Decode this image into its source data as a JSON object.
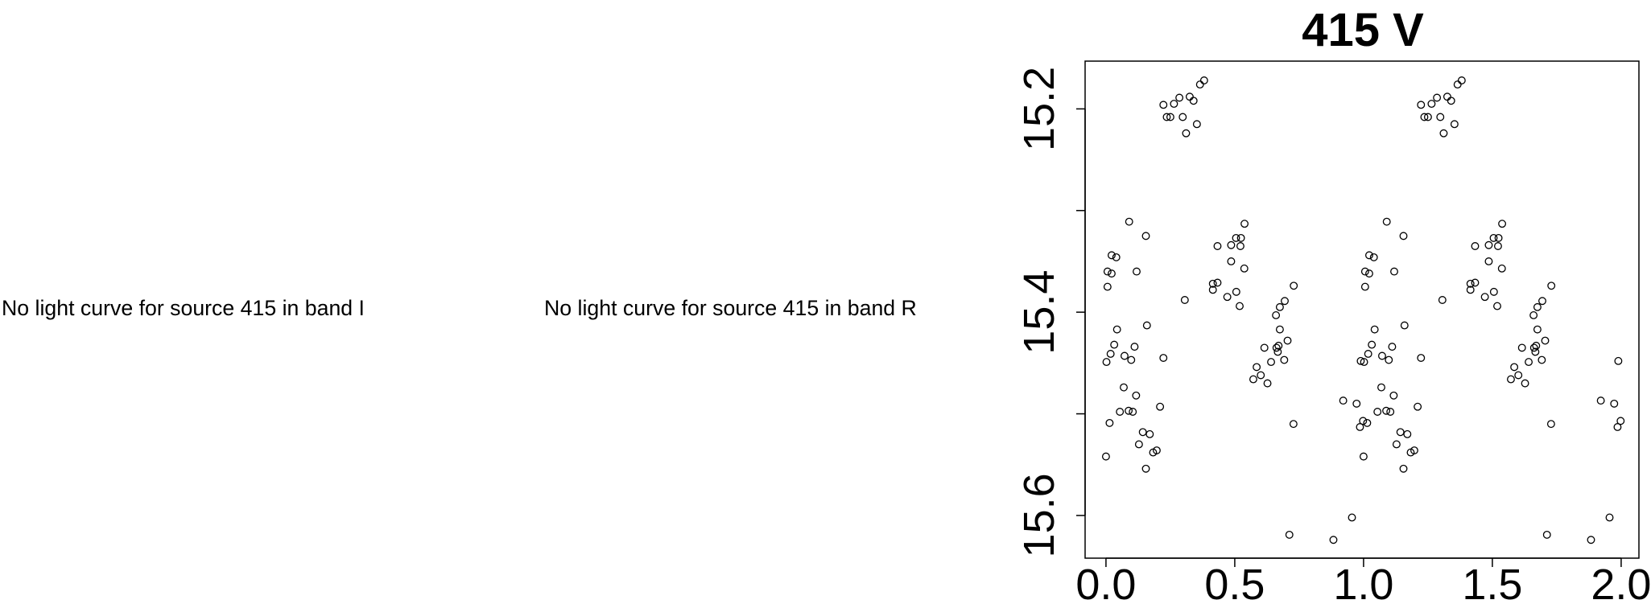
{
  "panels": {
    "band_i_message": "No light curve for source 415 in band I",
    "band_r_message": "No light curve for source 415 in band R"
  },
  "chart_data": {
    "type": "scatter",
    "title": "415 V",
    "xlabel": "",
    "ylabel": "",
    "xlim": [
      -0.081,
      2.069
    ],
    "ylim": [
      15.642,
      15.153
    ],
    "y_reversed": true,
    "grid": false,
    "marker": "open-circle",
    "x_ticks": [
      0.0,
      0.5,
      1.0,
      1.5,
      2.0
    ],
    "x_tick_labels": [
      "0.0",
      "0.5",
      "1.0",
      "1.5",
      "2.0"
    ],
    "y_ticks": [
      15.2,
      15.3,
      15.4,
      15.5,
      15.6
    ],
    "y_tick_labels": [
      "15.2",
      "",
      "15.4",
      "",
      "15.6"
    ],
    "points": [
      [
        0.223,
        15.196
      ],
      [
        0.236,
        15.208
      ],
      [
        0.25,
        15.208
      ],
      [
        0.264,
        15.195
      ],
      [
        0.285,
        15.189
      ],
      [
        0.298,
        15.208
      ],
      [
        0.311,
        15.224
      ],
      [
        0.325,
        15.188
      ],
      [
        0.34,
        15.192
      ],
      [
        0.353,
        15.215
      ],
      [
        0.365,
        15.176
      ],
      [
        0.381,
        15.172
      ],
      [
        0.09,
        15.311
      ],
      [
        0.155,
        15.325
      ],
      [
        0.022,
        15.344
      ],
      [
        0.04,
        15.346
      ],
      [
        0.006,
        15.36
      ],
      [
        0.022,
        15.362
      ],
      [
        0.119,
        15.36
      ],
      [
        0.006,
        15.375
      ],
      [
        0.433,
        15.335
      ],
      [
        0.486,
        15.334
      ],
      [
        0.505,
        15.327
      ],
      [
        0.524,
        15.327
      ],
      [
        0.522,
        15.335
      ],
      [
        0.538,
        15.313
      ],
      [
        0.486,
        15.35
      ],
      [
        0.537,
        15.357
      ],
      [
        0.415,
        15.372
      ],
      [
        0.433,
        15.371
      ],
      [
        0.415,
        15.378
      ],
      [
        0.506,
        15.38
      ],
      [
        0.471,
        15.385
      ],
      [
        0.519,
        15.394
      ],
      [
        0.306,
        15.388
      ],
      [
        0.043,
        15.417
      ],
      [
        0.159,
        15.413
      ],
      [
        0.032,
        15.432
      ],
      [
        0.018,
        15.441
      ],
      [
        0.002,
        15.449
      ],
      [
        0.072,
        15.443
      ],
      [
        0.098,
        15.447
      ],
      [
        0.111,
        15.434
      ],
      [
        0.223,
        15.445
      ],
      [
        0.069,
        15.474
      ],
      [
        0.117,
        15.482
      ],
      [
        0.054,
        15.498
      ],
      [
        0.088,
        15.497
      ],
      [
        0.104,
        15.498
      ],
      [
        0.21,
        15.493
      ],
      [
        0.014,
        15.509
      ],
      [
        0.143,
        15.518
      ],
      [
        0.17,
        15.52
      ],
      [
        0.128,
        15.53
      ],
      [
        0.183,
        15.538
      ],
      [
        0.197,
        15.536
      ],
      [
        0.155,
        15.554
      ],
      [
        0.0,
        15.542
      ],
      [
        0.66,
        15.403
      ],
      [
        0.675,
        15.395
      ],
      [
        0.694,
        15.389
      ],
      [
        0.729,
        15.374
      ],
      [
        0.675,
        15.417
      ],
      [
        0.705,
        15.428
      ],
      [
        0.662,
        15.435
      ],
      [
        0.67,
        15.433
      ],
      [
        0.667,
        15.439
      ],
      [
        0.615,
        15.435
      ],
      [
        0.641,
        15.449
      ],
      [
        0.692,
        15.447
      ],
      [
        0.585,
        15.454
      ],
      [
        0.572,
        15.466
      ],
      [
        0.601,
        15.462
      ],
      [
        0.627,
        15.47
      ],
      [
        0.728,
        15.51
      ],
      [
        0.712,
        15.619
      ],
      [
        0.883,
        15.624
      ],
      [
        0.955,
        15.602
      ],
      [
        0.921,
        15.487
      ],
      [
        0.973,
        15.49
      ],
      [
        0.986,
        15.513
      ],
      [
        0.998,
        15.507
      ],
      [
        0.989,
        15.448
      ],
      [
        1.223,
        15.196
      ],
      [
        1.236,
        15.208
      ],
      [
        1.25,
        15.208
      ],
      [
        1.264,
        15.195
      ],
      [
        1.285,
        15.189
      ],
      [
        1.298,
        15.208
      ],
      [
        1.311,
        15.224
      ],
      [
        1.325,
        15.188
      ],
      [
        1.34,
        15.192
      ],
      [
        1.353,
        15.215
      ],
      [
        1.365,
        15.176
      ],
      [
        1.381,
        15.172
      ],
      [
        1.09,
        15.311
      ],
      [
        1.155,
        15.325
      ],
      [
        1.022,
        15.344
      ],
      [
        1.04,
        15.346
      ],
      [
        1.006,
        15.36
      ],
      [
        1.022,
        15.362
      ],
      [
        1.119,
        15.36
      ],
      [
        1.006,
        15.375
      ],
      [
        1.433,
        15.335
      ],
      [
        1.486,
        15.334
      ],
      [
        1.505,
        15.327
      ],
      [
        1.524,
        15.327
      ],
      [
        1.522,
        15.335
      ],
      [
        1.538,
        15.313
      ],
      [
        1.486,
        15.35
      ],
      [
        1.537,
        15.357
      ],
      [
        1.415,
        15.372
      ],
      [
        1.433,
        15.371
      ],
      [
        1.415,
        15.378
      ],
      [
        1.506,
        15.38
      ],
      [
        1.471,
        15.385
      ],
      [
        1.519,
        15.394
      ],
      [
        1.306,
        15.388
      ],
      [
        1.043,
        15.417
      ],
      [
        1.159,
        15.413
      ],
      [
        1.032,
        15.432
      ],
      [
        1.018,
        15.441
      ],
      [
        1.002,
        15.449
      ],
      [
        1.072,
        15.443
      ],
      [
        1.098,
        15.447
      ],
      [
        1.111,
        15.434
      ],
      [
        1.223,
        15.445
      ],
      [
        1.069,
        15.474
      ],
      [
        1.117,
        15.482
      ],
      [
        1.054,
        15.498
      ],
      [
        1.088,
        15.497
      ],
      [
        1.104,
        15.498
      ],
      [
        1.21,
        15.493
      ],
      [
        1.014,
        15.509
      ],
      [
        1.143,
        15.518
      ],
      [
        1.17,
        15.52
      ],
      [
        1.128,
        15.53
      ],
      [
        1.183,
        15.538
      ],
      [
        1.197,
        15.536
      ],
      [
        1.155,
        15.554
      ],
      [
        1.0,
        15.542
      ],
      [
        1.66,
        15.403
      ],
      [
        1.675,
        15.395
      ],
      [
        1.694,
        15.389
      ],
      [
        1.729,
        15.374
      ],
      [
        1.675,
        15.417
      ],
      [
        1.705,
        15.428
      ],
      [
        1.662,
        15.435
      ],
      [
        1.67,
        15.433
      ],
      [
        1.667,
        15.439
      ],
      [
        1.615,
        15.435
      ],
      [
        1.641,
        15.449
      ],
      [
        1.692,
        15.447
      ],
      [
        1.585,
        15.454
      ],
      [
        1.572,
        15.466
      ],
      [
        1.601,
        15.462
      ],
      [
        1.627,
        15.47
      ],
      [
        1.728,
        15.51
      ],
      [
        1.712,
        15.619
      ],
      [
        1.883,
        15.624
      ],
      [
        1.955,
        15.602
      ],
      [
        1.921,
        15.487
      ],
      [
        1.973,
        15.49
      ],
      [
        1.986,
        15.513
      ],
      [
        1.998,
        15.507
      ],
      [
        1.989,
        15.448
      ]
    ]
  }
}
